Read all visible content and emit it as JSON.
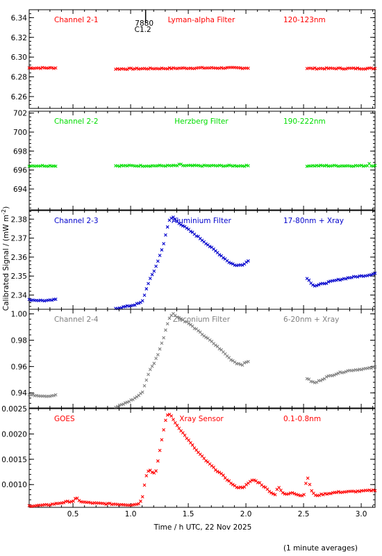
{
  "figure": {
    "xlabel": "Time / h UTC, 22 Nov 2025",
    "ylabel": "Calibrated Signal / (mW m",
    "ylabel_sup": "-2",
    "ylabel_close": ")",
    "footnote": "(1 minute averages)",
    "flare_marker": {
      "x": 1.13,
      "label_top": "7880",
      "label_bottom": "C1.2"
    },
    "x_range": [
      0.12,
      3.12
    ],
    "x_ticks": [
      0.5,
      1.0,
      1.5,
      2.0,
      2.5,
      3.0
    ],
    "x_tick_labels": [
      "0.5",
      "1.0",
      "1.5",
      "2.0",
      "2.5",
      "3.0"
    ]
  },
  "chart_data": [
    {
      "type": "scatter",
      "channel": "Channel 2-1",
      "filter": "Lyman-alpha Filter",
      "band": "120-123nm",
      "color": "#ff0000",
      "ylim": [
        6.248,
        6.348
      ],
      "y_ticks": [
        6.26,
        6.28,
        6.3,
        6.32,
        6.34
      ],
      "y_tick_labels": [
        "6.26",
        "6.28",
        "6.30",
        "6.32",
        "6.34"
      ],
      "segments": [
        {
          "x": [
            0.12,
            0.35
          ],
          "y": [
            6.289,
            6.289
          ]
        },
        {
          "x": [
            0.87,
            1.3,
            1.6,
            2.02
          ],
          "y": [
            6.288,
            6.2885,
            6.289,
            6.289
          ]
        },
        {
          "x": [
            2.53,
            3.12
          ],
          "y": [
            6.2885,
            6.2885
          ]
        }
      ]
    },
    {
      "type": "scatter",
      "channel": "Channel 2-2",
      "filter": "Herzberg Filter",
      "band": "190-222nm",
      "color": "#00dd00",
      "ylim": [
        691.8,
        702.2
      ],
      "y_ticks": [
        694,
        696,
        698,
        700,
        702
      ],
      "y_tick_labels": [
        "694",
        "696",
        "698",
        "700",
        "702"
      ],
      "segments": [
        {
          "x": [
            0.12,
            0.35
          ],
          "y": [
            696.45,
            696.45
          ]
        },
        {
          "x": [
            0.87,
            1.4,
            1.43,
            1.46,
            2.02
          ],
          "y": [
            696.45,
            696.45,
            696.6,
            696.45,
            696.45
          ]
        },
        {
          "x": [
            2.53,
            3.05,
            3.07,
            3.09,
            3.12
          ],
          "y": [
            696.45,
            696.45,
            696.7,
            696.45,
            696.45
          ]
        }
      ]
    },
    {
      "type": "scatter",
      "channel": "Channel 2-3",
      "filter": "Aluminium Filter",
      "band": "17-80nm + Xray",
      "color": "#0000cc",
      "ylim": [
        2.3325,
        2.3845
      ],
      "y_ticks": [
        2.34,
        2.35,
        2.36,
        2.37,
        2.38
      ],
      "y_tick_labels": [
        "2.34",
        "2.35",
        "2.36",
        "2.37",
        "2.38"
      ],
      "segments": [
        {
          "x": [
            0.12,
            0.2,
            0.28,
            0.35
          ],
          "y": [
            2.3375,
            2.3372,
            2.337,
            2.3376
          ]
        },
        {
          "x": [
            0.87,
            0.95,
            1.03,
            1.1,
            1.13,
            1.16,
            1.2,
            1.24,
            1.28,
            1.31,
            1.34,
            1.37,
            1.42,
            1.5,
            1.6,
            1.7,
            1.78,
            1.86,
            1.92,
            1.97,
            2.02
          ],
          "y": [
            2.333,
            2.3338,
            2.3348,
            2.3362,
            2.342,
            2.3475,
            2.352,
            2.3585,
            2.3655,
            2.3735,
            2.38,
            2.381,
            2.378,
            2.3745,
            2.37,
            2.365,
            2.361,
            2.357,
            2.3555,
            2.356,
            2.358
          ]
        },
        {
          "x": [
            2.53,
            2.57,
            2.6,
            2.7,
            2.8,
            2.9,
            3.0,
            3.06,
            3.12
          ],
          "y": [
            2.349,
            2.346,
            2.3448,
            2.3465,
            2.348,
            2.3492,
            2.35,
            2.3505,
            2.3515
          ]
        }
      ]
    },
    {
      "type": "scatter",
      "channel": "Channel 2-4",
      "filter": "Zirconium Filter",
      "band": "6-20nm + Xray",
      "color": "#808080",
      "ylim": [
        0.9285,
        1.0035
      ],
      "y_ticks": [
        0.94,
        0.96,
        0.98,
        1.0
      ],
      "y_tick_labels": [
        "0.94",
        "0.96",
        "0.98",
        "1.00"
      ],
      "segments": [
        {
          "x": [
            0.12,
            0.2,
            0.28,
            0.35
          ],
          "y": [
            0.9385,
            0.938,
            0.9375,
            0.9382
          ]
        },
        {
          "x": [
            0.87,
            0.95,
            1.03,
            1.1,
            1.13,
            1.16,
            1.2,
            1.24,
            1.28,
            1.31,
            1.34,
            1.37,
            1.42,
            1.5,
            1.6,
            1.7,
            1.78,
            1.86,
            1.92,
            1.97,
            2.02
          ],
          "y": [
            0.929,
            0.932,
            0.9355,
            0.94,
            0.948,
            0.956,
            0.962,
            0.97,
            0.98,
            0.99,
            0.998,
            1.0,
            0.997,
            0.993,
            0.986,
            0.979,
            0.973,
            0.966,
            0.9625,
            0.9615,
            0.964
          ]
        },
        {
          "x": [
            2.53,
            2.57,
            2.6,
            2.7,
            2.8,
            2.9,
            3.0,
            3.06,
            3.12
          ],
          "y": [
            0.951,
            0.9485,
            0.9475,
            0.952,
            0.955,
            0.957,
            0.958,
            0.9585,
            0.9595
          ]
        }
      ]
    },
    {
      "type": "scatter",
      "channel": "GOES",
      "filter": "Xray Sensor",
      "band": "0.1-0.8nm",
      "color": "#ff0000",
      "ylim": [
        0.00055,
        0.0025
      ],
      "y_ticks": [
        0.001,
        0.0015,
        0.002,
        0.0025
      ],
      "y_tick_labels": [
        "0.0010",
        "0.0015",
        "0.0020",
        "0.0025"
      ],
      "segments": [
        {
          "x": [
            0.12,
            0.25,
            0.35,
            0.45,
            0.5,
            0.53,
            0.55,
            0.6,
            0.7,
            0.8,
            0.9,
            1.0,
            1.05,
            1.08,
            1.1,
            1.12,
            1.14,
            1.16,
            1.18,
            1.2,
            1.22,
            1.24,
            1.26,
            1.28,
            1.3,
            1.32,
            1.34,
            1.36,
            1.4,
            1.46,
            1.52,
            1.58,
            1.65,
            1.72,
            1.8,
            1.86,
            1.9,
            1.94,
            1.98,
            2.02,
            2.06,
            2.12,
            2.2,
            2.25,
            2.28,
            2.31,
            2.35,
            2.4,
            2.45,
            2.5,
            2.53,
            2.55,
            2.57,
            2.6,
            2.7,
            2.8,
            2.9,
            3.0,
            3.12
          ],
          "y": [
            0.00058,
            0.00059,
            0.00062,
            0.00066,
            0.00067,
            0.00074,
            0.00068,
            0.00065,
            0.00063,
            0.00062,
            0.00061,
            0.0006,
            0.00061,
            0.00064,
            0.00072,
            0.001,
            0.00122,
            0.0013,
            0.00126,
            0.00122,
            0.00128,
            0.0015,
            0.00175,
            0.002,
            0.00225,
            0.00237,
            0.0024,
            0.00232,
            0.00218,
            0.002,
            0.00182,
            0.00165,
            0.00148,
            0.00133,
            0.00118,
            0.00105,
            0.00097,
            0.00094,
            0.00095,
            0.00102,
            0.0011,
            0.00103,
            0.00088,
            0.00079,
            0.00097,
            0.00085,
            0.0008,
            0.00085,
            0.0008,
            0.00077,
            0.00116,
            0.00103,
            0.00088,
            0.00078,
            0.00082,
            0.00085,
            0.00086,
            0.00087,
            0.00089
          ]
        }
      ]
    }
  ]
}
